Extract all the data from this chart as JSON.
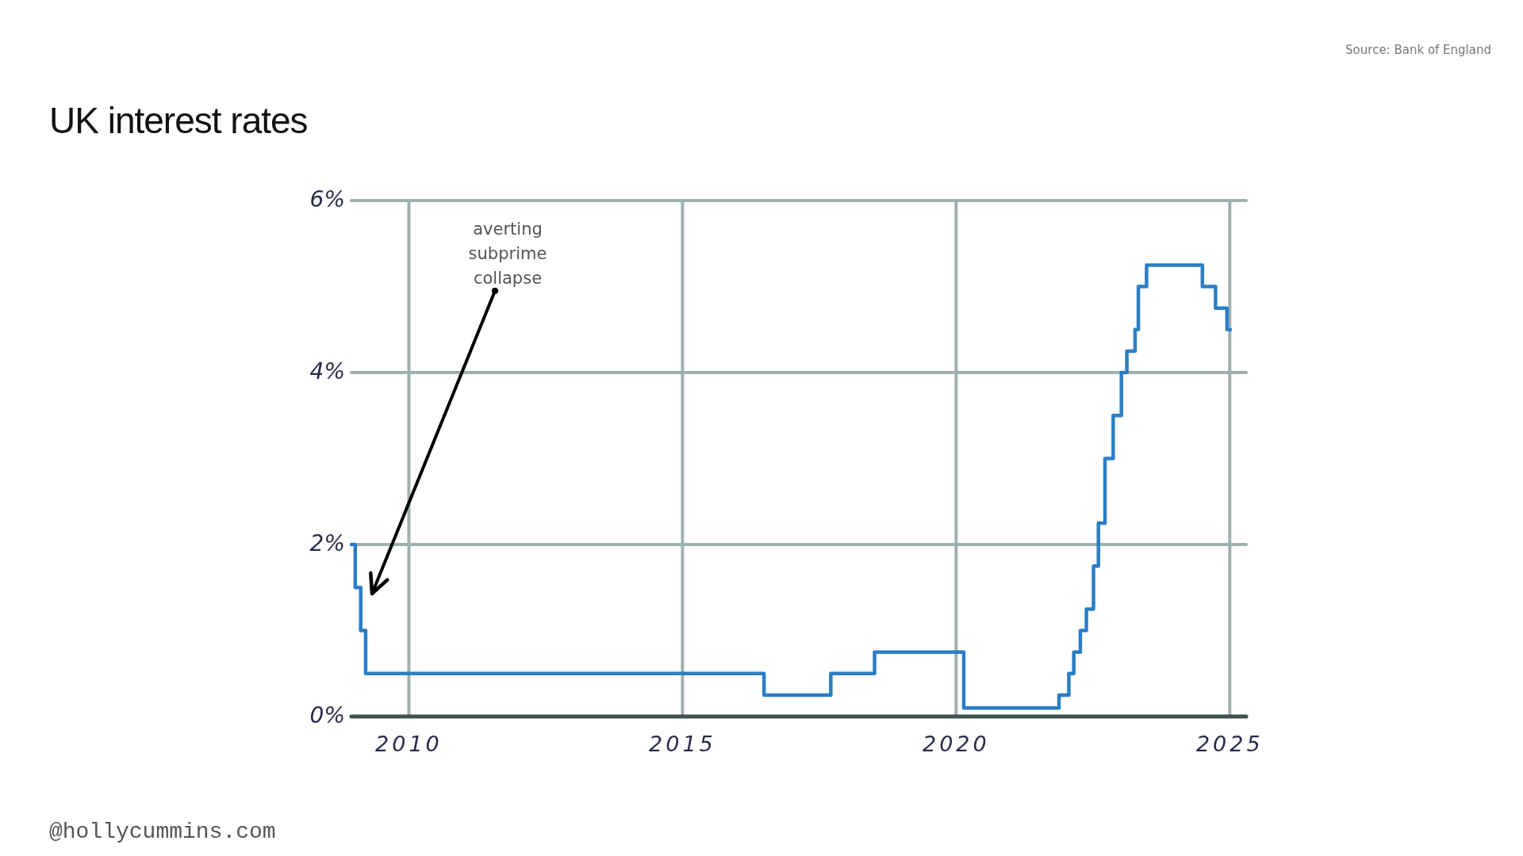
{
  "chart_data": {
    "type": "step",
    "title": "UK interest rates",
    "x": [
      2008.95,
      2009.02,
      2009.12,
      2009.21,
      2016.49,
      2017.71,
      2018.51,
      2020.14,
      2021.88,
      2022.06,
      2022.15,
      2022.27,
      2022.38,
      2022.51,
      2022.6,
      2022.72,
      2022.87,
      2023.02,
      2023.12,
      2023.27,
      2023.33,
      2023.48,
      2024.5,
      2024.74,
      2024.95,
      2025.01
    ],
    "values": [
      2,
      1.5,
      1,
      0.5,
      0.25,
      0.5,
      0.75,
      0.1,
      0.25,
      0.5,
      0.75,
      1,
      1.25,
      1.75,
      2.25,
      3,
      3.5,
      4,
      4.25,
      4.5,
      5,
      5.25,
      5,
      4.75,
      4.5,
      4.5
    ],
    "color": "#2b7ec6",
    "xlim": [
      2008.95,
      2025.3
    ],
    "ylim": [
      0,
      6
    ],
    "xticks": [
      2010,
      2015,
      2020,
      2025
    ],
    "yticks": [
      {
        "value": 0,
        "label": "0%"
      },
      {
        "value": 2,
        "label": "2%"
      },
      {
        "value": 4,
        "label": "4%"
      },
      {
        "value": 6,
        "label": "6%"
      }
    ],
    "grid": true,
    "line_style": "solid",
    "marker": "none",
    "annotations": [
      "Source: Bank of England",
      "averting subprime collapse",
      "@hollycummins.com"
    ]
  }
}
